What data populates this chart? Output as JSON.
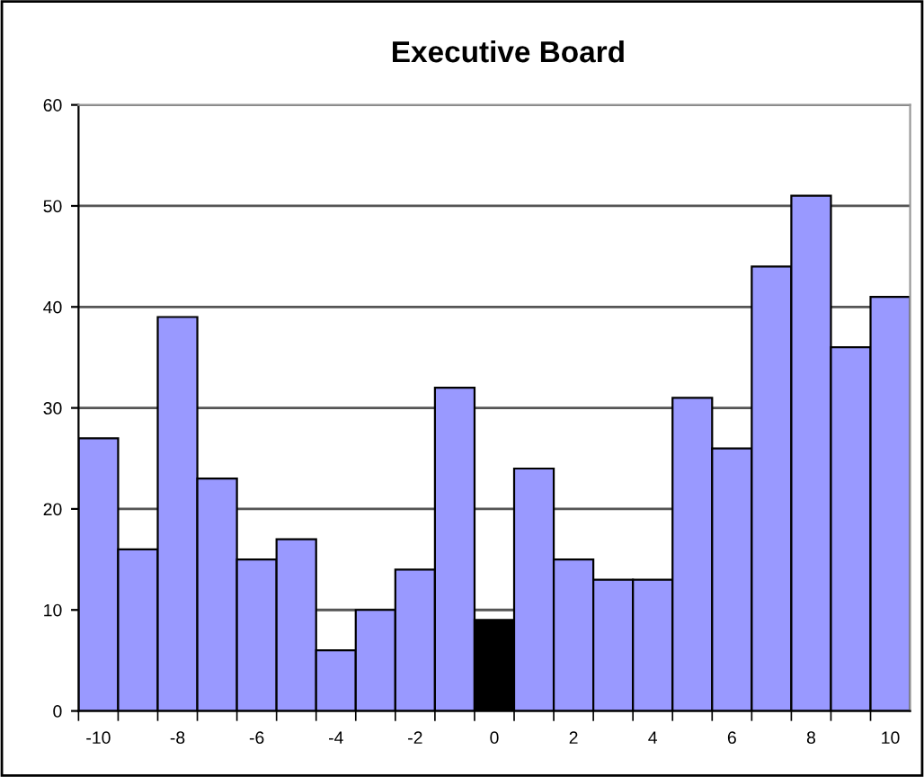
{
  "chart_data": {
    "type": "bar",
    "title": "Executive Board",
    "categories": [
      "-10",
      null,
      "-8",
      null,
      "-6",
      null,
      "-4",
      null,
      "-2",
      null,
      "0",
      null,
      "2",
      null,
      "4",
      null,
      "6",
      null,
      "8",
      null,
      "10"
    ],
    "values": [
      27,
      16,
      39,
      23,
      15,
      17,
      6,
      10,
      14,
      32,
      9,
      24,
      15,
      13,
      13,
      31,
      26,
      44,
      51,
      36,
      41
    ],
    "colors": [
      "#9999ff",
      "#9999ff",
      "#9999ff",
      "#9999ff",
      "#9999ff",
      "#9999ff",
      "#9999ff",
      "#9999ff",
      "#9999ff",
      "#9999ff",
      "#000000",
      "#9999ff",
      "#9999ff",
      "#9999ff",
      "#9999ff",
      "#9999ff",
      "#9999ff",
      "#9999ff",
      "#9999ff",
      "#9999ff",
      "#9999ff"
    ],
    "ylim": [
      0,
      60
    ],
    "yticks": [
      0,
      10,
      20,
      30,
      40,
      50,
      60
    ],
    "grid": "y",
    "legend": false
  }
}
